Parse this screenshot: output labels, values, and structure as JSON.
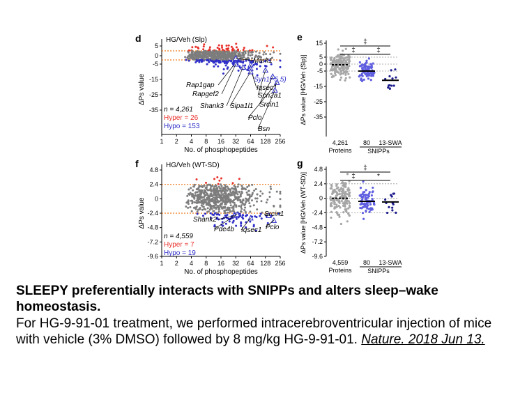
{
  "figure": {
    "colors": {
      "hyper": "#e8302a",
      "hypo": "#2e2ec8",
      "gray": "#7d7d7d",
      "dashed_line": "#f07a1f",
      "protein_dots": "#a6a6a6",
      "snipp80_dots": "#5f5fe0",
      "swa_dots": "#1c1c8c"
    },
    "panels": {
      "d": {
        "letter": "d",
        "title": "HG/Veh (Slp)",
        "n_label": "n = 4,261",
        "hyper_label": "Hyper = 26",
        "hypo_label": "Hypo = 153",
        "genes": [
          "Mark1",
          "Syn1(-5.5)",
          "Rap1gap",
          "Iqsec1",
          "Rapgef2",
          "Scn2a1",
          "Shank3",
          "Sipa1l1",
          "Srcin1",
          "Pclo",
          "Bsn"
        ]
      },
      "e": {
        "letter": "e",
        "sig": [
          "‡",
          "‡",
          "‡"
        ]
      },
      "f": {
        "letter": "f",
        "title": "HG/Veh (WT-SD)",
        "n_label": "n = 4,559",
        "hyper_label": "Hyper = 7",
        "hypo_label": "Hypo = 19",
        "genes": [
          "Shank2",
          "Srcin1",
          "Pde4b",
          "Iqsec1",
          "Pclo"
        ]
      },
      "g": {
        "letter": "g",
        "sig": [
          "‡",
          "‡",
          "*"
        ]
      }
    }
  },
  "chart_data": [
    {
      "panel": "d",
      "type": "scatter",
      "title": "HG/Veh (Slp)",
      "xlabel": "No. of phosphopeptides",
      "ylabel": "ΔPs value",
      "x_scale": "log2",
      "x_ticks": [
        1,
        2,
        4,
        8,
        16,
        32,
        64,
        128,
        256
      ],
      "y_ticks": [
        5,
        0,
        -5,
        -15,
        -25,
        -35
      ],
      "ylim": [
        -35,
        15
      ],
      "thresholds": [
        2.5,
        -2.5
      ],
      "legend": {
        "n": "n = 4,261",
        "hyper": "Hyper = 26",
        "hypo": "Hypo = 153"
      },
      "highlighted": [
        {
          "label": "Mark1",
          "x": 32,
          "y": -1.5
        },
        {
          "label": "Syn1(-5.5)",
          "x": 64,
          "y": -5.5
        },
        {
          "label": "Rap1gap",
          "x": 32,
          "y": -4
        },
        {
          "label": "Iqsec1",
          "x": 64,
          "y": -8
        },
        {
          "label": "Rapgef2",
          "x": 32,
          "y": -5
        },
        {
          "label": "Scn2a1",
          "x": 128,
          "y": -9
        },
        {
          "label": "Shank3",
          "x": 45,
          "y": -7
        },
        {
          "label": "Sipa1l1",
          "x": 64,
          "y": -10
        },
        {
          "label": "Srcin1",
          "x": 180,
          "y": -13
        },
        {
          "label": "Pclo",
          "x": 220,
          "y": -17
        },
        {
          "label": "Bsn",
          "x": 200,
          "y": -22
        }
      ]
    },
    {
      "panel": "e",
      "type": "scatter",
      "ylabel": "ΔPs value [HG/Veh (Slp)]",
      "categories": [
        "4,261 Proteins",
        "80 SNIPPs",
        "13-SWA SNIPPs"
      ],
      "category_labels": [
        "4,261",
        "80",
        "13-SWA"
      ],
      "group_labels": [
        "Proteins",
        "SNIPPs"
      ],
      "y_ticks": [
        15,
        5,
        0,
        -5,
        -15,
        -25,
        -35
      ],
      "ylim": [
        -35,
        15
      ],
      "medians": [
        -0.5,
        -5,
        -11
      ],
      "significance": [
        {
          "from": 0,
          "to": 2,
          "label": "‡"
        },
        {
          "from": 0,
          "to": 1,
          "label": "‡"
        },
        {
          "from": 1,
          "to": 2,
          "label": "‡"
        }
      ]
    },
    {
      "panel": "f",
      "type": "scatter",
      "title": "HG/Veh (WT-SD)",
      "xlabel": "No. of phosphopeptides",
      "ylabel": "ΔPs value",
      "x_scale": "log2",
      "x_ticks": [
        1,
        2,
        4,
        8,
        16,
        32,
        64,
        128,
        256
      ],
      "y_ticks": [
        4.8,
        2.4,
        0,
        -2.4,
        -4.8,
        -7.2,
        -9.6
      ],
      "ylim": [
        -9.6,
        4.8
      ],
      "thresholds": [
        2.4,
        -2.4
      ],
      "legend": {
        "n": "n = 4,559",
        "hyper": "Hyper = 7",
        "hypo": "Hypo = 19"
      },
      "highlighted": [
        {
          "label": "Shank2",
          "x": 30,
          "y": -2.8
        },
        {
          "label": "Srcin1",
          "x": 150,
          "y": -2.8
        },
        {
          "label": "Pde4b",
          "x": 34,
          "y": -2.6
        },
        {
          "label": "Iqsec1",
          "x": 64,
          "y": -3.2
        },
        {
          "label": "Pclo",
          "x": 190,
          "y": -3.6
        }
      ]
    },
    {
      "panel": "g",
      "type": "scatter",
      "ylabel": "ΔPs value [HG/Veh (WT-SD)]",
      "categories": [
        "4,559 Proteins",
        "80 SNIPPs",
        "13-SWA SNIPPs"
      ],
      "category_labels": [
        "4,559",
        "80",
        "13-SWA"
      ],
      "group_labels": [
        "Proteins",
        "SNIPPs"
      ],
      "y_ticks": [
        4.8,
        2.4,
        0,
        -2.4,
        -4.8,
        -7.2,
        -9.6
      ],
      "ylim": [
        -9.6,
        4.8
      ],
      "medians": [
        0,
        -0.5,
        -0.6
      ],
      "significance": [
        {
          "from": 0,
          "to": 2,
          "label": "‡"
        },
        {
          "from": 0,
          "to": 1,
          "label": "‡"
        },
        {
          "from": 1,
          "to": 2,
          "label": "*"
        }
      ]
    }
  ],
  "caption": {
    "title": "SLEEPY preferentially interacts with SNIPPs and alters sleep–wake homeostasis.",
    "body": "For HG-9-91-01 treatment, we performed intracerebroventricular injection of mice with vehicle (3% DMSO) followed by 8 mg/kg HG-9-91-01.",
    "link": "Nature. 2018 Jun 13."
  }
}
